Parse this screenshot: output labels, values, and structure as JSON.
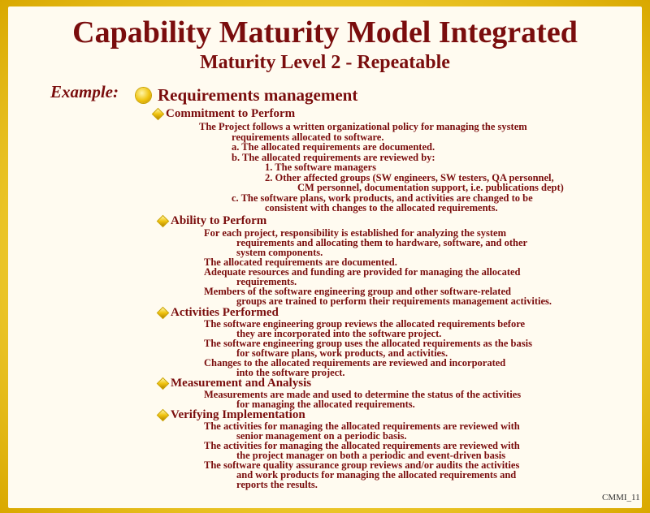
{
  "title": "Capability Maturity Model Integrated",
  "subtitle": "Maturity Level 2 - Repeatable",
  "example_label": "Example:",
  "topic": "Requirements management",
  "sections": {
    "commitment": {
      "heading": "Commitment to Perform",
      "lines": [
        "The Project follows a written organizational policy for managing the system",
        "requirements allocated to software.",
        "a. The allocated requirements are documented.",
        "b. The allocated requirements are reviewed by:",
        "1. The software managers",
        "2. Other affected groups (SW engineers, SW testers, QA personnel,",
        "CM personnel, documentation support, i.e. publications dept)",
        "c. The software plans, work products, and activities are changed to be",
        "consistent with changes to the allocated requirements."
      ]
    },
    "ability": {
      "heading": "Ability to Perform",
      "lines": [
        "For each project, responsibility is established for analyzing the system",
        "requirements and allocating them to hardware, software, and other",
        "system components.",
        "The allocated requirements are documented.",
        "Adequate resources and funding are provided for managing the allocated",
        "requirements.",
        "Members of the software engineering group and other software-related",
        "groups are trained to perform their requirements management activities."
      ]
    },
    "activities": {
      "heading": "Activities Performed",
      "lines": [
        "The software engineering group reviews the allocated requirements before",
        "they are incorporated into the software project.",
        "The software engineering group uses the allocated requirements as the basis",
        "for software plans, work products, and activities.",
        "Changes to the allocated requirements are reviewed and incorporated",
        "into the software project."
      ]
    },
    "measurement": {
      "heading": "Measurement and Analysis",
      "lines": [
        "Measurements are made and used to determine the status of the activities",
        "for managing the allocated requirements."
      ]
    },
    "verifying": {
      "heading": "Verifying Implementation",
      "lines": [
        "The activities for managing the allocated requirements are reviewed with",
        "senior management on a periodic basis.",
        "The activities for managing the allocated requirements are reviewed with",
        "the project manager on both a periodic and event-driven basis",
        "The software quality assurance group reviews and/or audits the activities",
        "and work products for managing the allocated requirements and",
        "reports the results."
      ]
    }
  },
  "slide_id": "CMMI_11",
  "colors": {
    "text": "#7a0d0d",
    "frame": "#f3d23a",
    "background": "#fffbf0"
  }
}
